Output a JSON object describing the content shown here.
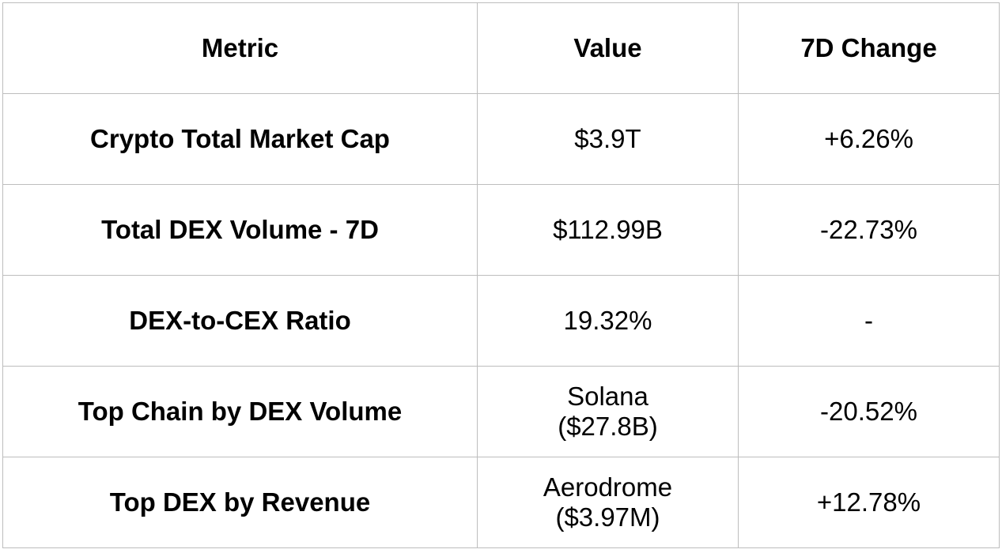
{
  "table": {
    "headers": {
      "metric": "Metric",
      "value": "Value",
      "change": "7D Change"
    },
    "rows": [
      {
        "metric": "Crypto Total Market Cap",
        "value_line1": "$3.9T",
        "value_line2": "",
        "change": "+6.26%"
      },
      {
        "metric": "Total DEX Volume - 7D",
        "value_line1": "$112.99B",
        "value_line2": "",
        "change": "-22.73%"
      },
      {
        "metric": "DEX-to-CEX Ratio",
        "value_line1": "19.32%",
        "value_line2": "",
        "change": "-"
      },
      {
        "metric": "Top Chain by DEX Volume",
        "value_line1": "Solana",
        "value_line2": "($27.8B)",
        "change": "-20.52%"
      },
      {
        "metric": "Top DEX by Revenue",
        "value_line1": "Aerodrome",
        "value_line2": "($3.97M)",
        "change": "+12.78%"
      }
    ]
  }
}
